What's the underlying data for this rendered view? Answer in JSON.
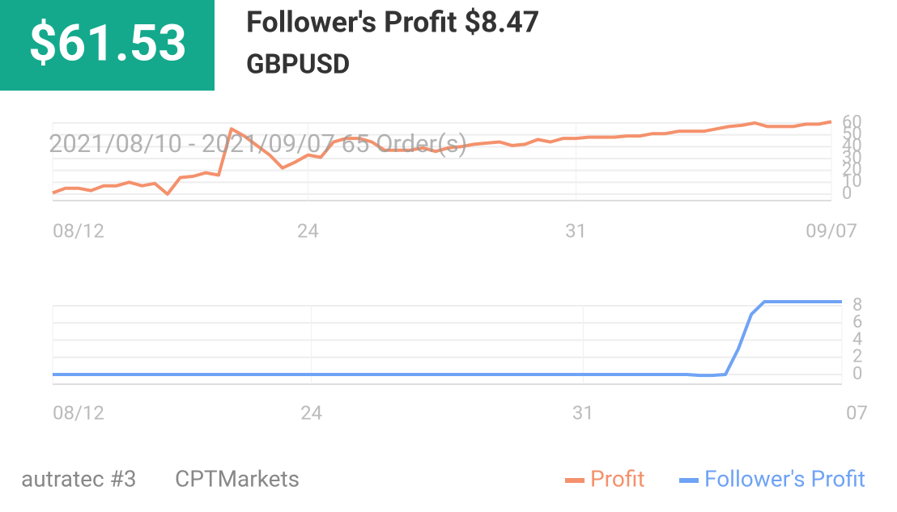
{
  "header": {
    "badge": "$61.53",
    "title": "Follower's Profit $8.47",
    "symbol": "GBPUSD"
  },
  "footer": {
    "account": "autratec #3",
    "broker": "CPTMarkets"
  },
  "chart_data": [
    {
      "type": "line",
      "annotation": "2021/08/10 - 2021/09/07  65 Order(s)",
      "categories": [
        "08/12",
        null,
        null,
        null,
        null,
        null,
        null,
        null,
        null,
        null,
        null,
        null,
        null,
        null,
        null,
        null,
        null,
        null,
        null,
        null,
        "24",
        null,
        null,
        null,
        null,
        null,
        null,
        null,
        null,
        null,
        null,
        null,
        null,
        null,
        null,
        null,
        null,
        null,
        null,
        null,
        null,
        "31",
        null,
        null,
        null,
        null,
        null,
        null,
        null,
        null,
        null,
        null,
        null,
        null,
        null,
        null,
        null,
        null,
        null,
        null,
        null,
        "09/07"
      ],
      "series": [
        {
          "name": "Profit",
          "color": "#f4916c",
          "values": [
            1,
            5,
            5,
            3,
            7,
            7,
            10,
            7,
            9,
            0,
            14,
            15,
            18,
            16,
            55,
            49,
            41,
            33,
            22,
            27,
            33,
            31,
            44,
            47,
            47,
            44,
            37,
            37,
            37,
            39,
            36,
            39,
            40,
            42,
            43,
            44,
            41,
            42,
            46,
            44,
            47,
            47,
            48,
            48,
            48,
            49,
            49,
            51,
            51,
            53,
            53,
            53,
            55,
            57,
            58,
            60,
            57,
            57,
            57,
            59,
            59,
            61
          ]
        }
      ],
      "ylim": [
        0,
        60
      ],
      "yticks": [
        0,
        10,
        20,
        30,
        40,
        50,
        60
      ],
      "grid": true
    },
    {
      "type": "line",
      "categories": [
        "08/12",
        null,
        null,
        null,
        null,
        null,
        null,
        null,
        null,
        null,
        null,
        null,
        null,
        null,
        null,
        null,
        null,
        null,
        null,
        null,
        "24",
        null,
        null,
        null,
        null,
        null,
        null,
        null,
        null,
        null,
        null,
        null,
        null,
        null,
        null,
        null,
        null,
        null,
        null,
        null,
        null,
        "31",
        null,
        null,
        null,
        null,
        null,
        null,
        null,
        null,
        null,
        null,
        null,
        null,
        null,
        null,
        null,
        null,
        null,
        null,
        null,
        "07"
      ],
      "series": [
        {
          "name": "Follower's Profit",
          "color": "#6fa3f5",
          "values": [
            0,
            0,
            0,
            0,
            0,
            0,
            0,
            0,
            0,
            0,
            0,
            0,
            0,
            0,
            0,
            0,
            0,
            0,
            0,
            0,
            0,
            0,
            0,
            0,
            0,
            0,
            0,
            0,
            0,
            0,
            0,
            0,
            0,
            0,
            0,
            0,
            0,
            0,
            0,
            0,
            0,
            0,
            0,
            0,
            0,
            0,
            0,
            0,
            0,
            0,
            -0.1,
            -0.1,
            0,
            3,
            7,
            8.47,
            8.47,
            8.47,
            8.47,
            8.47,
            8.47,
            8.47
          ]
        }
      ],
      "ylim": [
        0,
        8
      ],
      "yticks": [
        0,
        2,
        4,
        6,
        8
      ],
      "grid": true
    }
  ]
}
